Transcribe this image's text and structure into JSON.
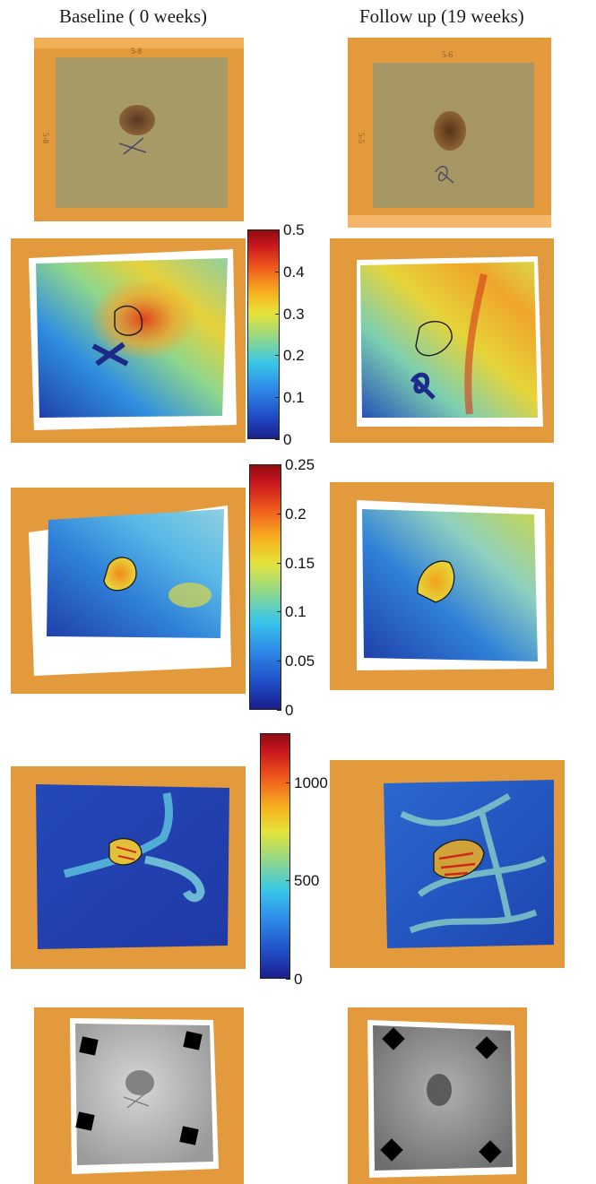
{
  "headers": {
    "baseline": "Baseline ( 0 weeks)",
    "followup": "Follow up (19 weeks)"
  },
  "frame_labels": {
    "baseline_top": "5-8",
    "baseline_side": "5-8",
    "followup_top": "5-6",
    "followup_side": "5-5"
  },
  "colorbars": [
    {
      "ticks": [
        "0.5",
        "0.4",
        "0.3",
        "0.2",
        "0.1",
        "0"
      ],
      "values": [
        0.5,
        0.4,
        0.3,
        0.2,
        0.1,
        0
      ]
    },
    {
      "ticks": [
        "0.25",
        "0.2",
        "0.15",
        "0.1",
        "0.05",
        "0"
      ],
      "values": [
        0.25,
        0.2,
        0.15,
        0.1,
        0.05,
        0
      ]
    },
    {
      "ticks": [
        "1000",
        "500",
        "0"
      ],
      "values": [
        1000,
        500,
        0
      ],
      "max": 1250
    }
  ],
  "rows": [
    {
      "name": "photo"
    },
    {
      "name": "map-1"
    },
    {
      "name": "map-2"
    },
    {
      "name": "map-3"
    },
    {
      "name": "grayscale"
    }
  ],
  "colors": {
    "frame": "#e39a3c",
    "frame_dark": "#c97a22",
    "skin": "#a89a66",
    "lesion": "#6b4224",
    "marker": "#2a2a8a"
  }
}
